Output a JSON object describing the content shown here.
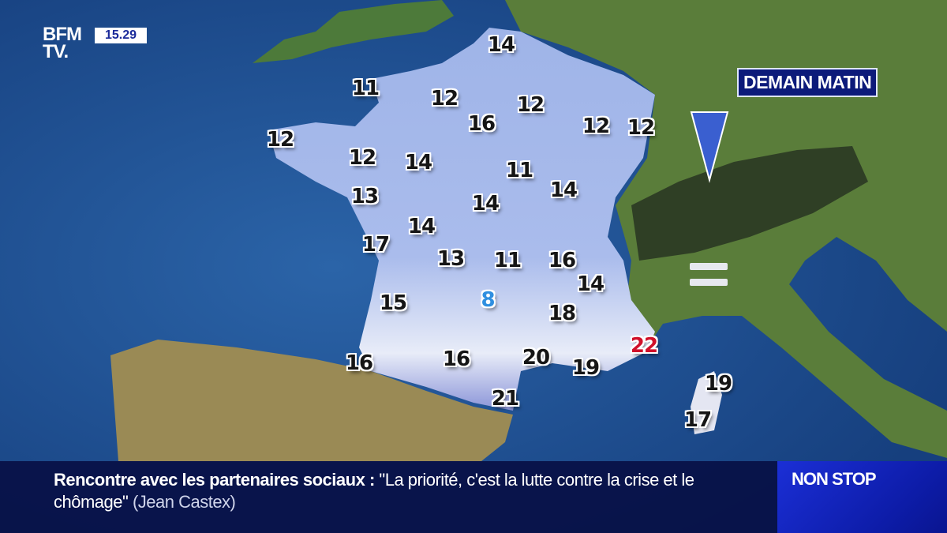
{
  "channel": {
    "logo_text": "BFM TV.",
    "logo_line1": "BFM",
    "logo_line2": "TV.",
    "clock": "15.29"
  },
  "map": {
    "title": "DEMAIN MATIN",
    "symbols": [
      "wind-arrow-down-icon",
      "fog-icon"
    ],
    "temperatures": [
      {
        "value": "14",
        "color": "#151515"
      },
      {
        "value": "11",
        "color": "#151515"
      },
      {
        "value": "12",
        "color": "#151515"
      },
      {
        "value": "12",
        "color": "#151515"
      },
      {
        "value": "16",
        "color": "#151515"
      },
      {
        "value": "12",
        "color": "#151515"
      },
      {
        "value": "12",
        "color": "#151515"
      },
      {
        "value": "12",
        "color": "#151515"
      },
      {
        "value": "12",
        "color": "#151515"
      },
      {
        "value": "14",
        "color": "#151515"
      },
      {
        "value": "11",
        "color": "#151515"
      },
      {
        "value": "14",
        "color": "#151515"
      },
      {
        "value": "13",
        "color": "#151515"
      },
      {
        "value": "14",
        "color": "#151515"
      },
      {
        "value": "14",
        "color": "#151515"
      },
      {
        "value": "17",
        "color": "#151515"
      },
      {
        "value": "13",
        "color": "#151515"
      },
      {
        "value": "11",
        "color": "#151515"
      },
      {
        "value": "16",
        "color": "#151515"
      },
      {
        "value": "14",
        "color": "#151515"
      },
      {
        "value": "8",
        "color": "#2f8fe0"
      },
      {
        "value": "15",
        "color": "#151515"
      },
      {
        "value": "18",
        "color": "#151515"
      },
      {
        "value": "16",
        "color": "#151515"
      },
      {
        "value": "16",
        "color": "#151515"
      },
      {
        "value": "20",
        "color": "#151515"
      },
      {
        "value": "19",
        "color": "#151515"
      },
      {
        "value": "22",
        "color": "#d0102a"
      },
      {
        "value": "21",
        "color": "#151515"
      },
      {
        "value": "19",
        "color": "#151515"
      },
      {
        "value": "17",
        "color": "#151515"
      }
    ]
  },
  "ticker": {
    "headline": "Rencontre avec les partenaires sociaux",
    "separator": ":",
    "quote": "\"La priorité, c'est la lutte contre la crise et le chômage\"",
    "author": "(Jean Castex)",
    "badge": "NON STOP"
  }
}
